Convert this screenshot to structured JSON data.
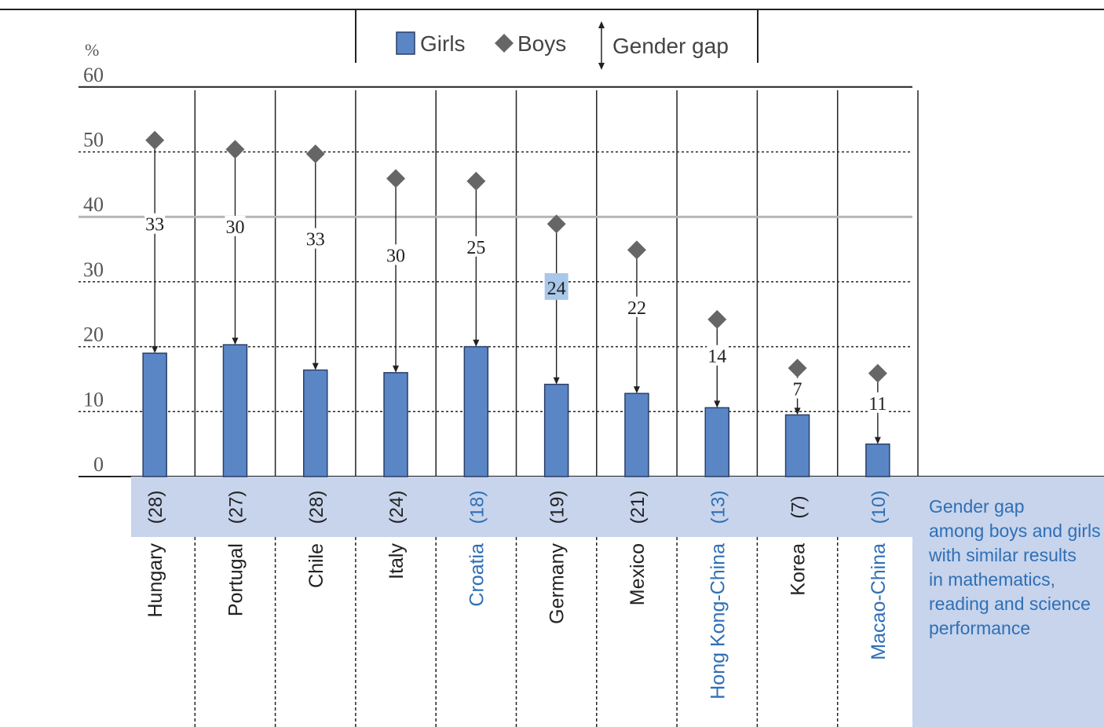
{
  "chart_data": {
    "type": "bar",
    "ylabel": "%",
    "ylim": [
      0,
      60
    ],
    "yticks": [
      0,
      10,
      20,
      30,
      40,
      50,
      60
    ],
    "grid": true,
    "legend_position": "top-center",
    "legend": {
      "girls": "Girls",
      "boys": "Boys",
      "gap": "Gender gap"
    },
    "colors": {
      "girls": "#5b86c6",
      "boys": "#666666",
      "band": "#c7d4ec",
      "highlight": "#2f6fb5",
      "gap_highlight": "#a9c7e8"
    },
    "categories": [
      "Hungary",
      "Portugal",
      "Chile",
      "Italy",
      "Croatia",
      "Germany",
      "Mexico",
      "Hong Kong-China",
      "Korea",
      "Macao-China"
    ],
    "highlighted": [
      false,
      false,
      false,
      false,
      true,
      false,
      false,
      true,
      false,
      true
    ],
    "series": [
      {
        "name": "Girls",
        "values": [
          19,
          20.3,
          16.4,
          16,
          20,
          14.2,
          12.8,
          10.6,
          9.5,
          5
        ]
      },
      {
        "name": "Boys",
        "values": [
          51.8,
          50.4,
          49.7,
          45.9,
          45.5,
          38.9,
          34.9,
          24.2,
          16.7,
          15.9
        ]
      }
    ],
    "gender_gap": [
      "33",
      "30",
      "33",
      "30",
      "25",
      "24",
      "22",
      "14",
      "7",
      "11"
    ],
    "gap_highlight_index": 5,
    "adjusted_gap": [
      "(28)",
      "(27)",
      "(28)",
      "(24)",
      "(18)",
      "(19)",
      "(21)",
      "(13)",
      "(7)",
      "(10)"
    ],
    "band_note": [
      "Gender gap",
      "among boys and girls",
      "with similar results",
      "in mathematics,",
      "reading and science",
      "performance"
    ]
  }
}
